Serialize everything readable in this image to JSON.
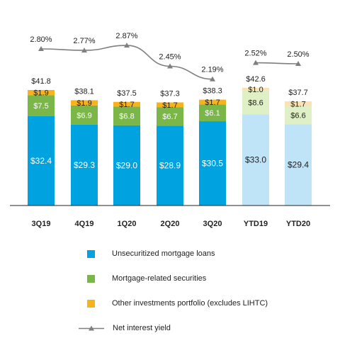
{
  "chart_data": {
    "type": "bar",
    "categories": [
      "3Q19",
      "4Q19",
      "1Q20",
      "2Q20",
      "3Q20",
      "YTD19",
      "YTD20"
    ],
    "series": [
      {
        "name": "Unsecuritized mortgage loans",
        "values": [
          32.4,
          29.3,
          29.0,
          28.9,
          30.5,
          33.0,
          29.4
        ],
        "labels": [
          "$32.4",
          "$29.3",
          "$29.0",
          "$28.9",
          "$30.5",
          "$33.0",
          "$29.4"
        ]
      },
      {
        "name": "Mortgage-related securities",
        "values": [
          7.5,
          6.9,
          6.8,
          6.7,
          6.1,
          8.6,
          6.6
        ],
        "labels": [
          "$7.5",
          "$6.9",
          "$6.8",
          "$6.7",
          "$6.1",
          "$8.6",
          "$6.6"
        ]
      },
      {
        "name": "Other investments portfolio (excludes LIHTC)",
        "values": [
          1.9,
          1.9,
          1.7,
          1.7,
          1.7,
          1.0,
          1.7
        ],
        "labels": [
          "$1.9",
          "$1.9",
          "$1.7",
          "$1.7",
          "$1.7",
          "$1.0",
          "$1.7"
        ]
      }
    ],
    "totals": [
      "$41.8",
      "$38.1",
      "$37.5",
      "$37.3",
      "$38.3",
      "$42.6",
      "$37.7"
    ],
    "line_series": {
      "name": "Net interest yield",
      "values": [
        2.8,
        2.77,
        2.87,
        2.45,
        2.19,
        2.52,
        2.5
      ],
      "labels": [
        "2.80%",
        "2.77%",
        "2.87%",
        "2.45%",
        "2.19%",
        "2.52%",
        "2.50%"
      ],
      "segments": [
        [
          0,
          4
        ],
        [
          5,
          6
        ]
      ]
    },
    "ylim": [
      0,
      50
    ],
    "colors": {
      "quarterly": [
        "#00a3e0",
        "#7ab648",
        "#f7b21c"
      ],
      "ytd": [
        "#bfe3f7",
        "#dff0c6",
        "#fbe2b0"
      ],
      "line": "#7f7f7f"
    }
  },
  "legend": [
    {
      "label": "Unsecuritized mortgage loans",
      "color": "#00a3e0"
    },
    {
      "label": "Mortgage-related securities",
      "color": "#7ab648"
    },
    {
      "label": "Other investments portfolio (excludes LIHTC)",
      "color": "#f7b21c"
    },
    {
      "label": "Net interest yield",
      "color": "#7f7f7f"
    }
  ]
}
